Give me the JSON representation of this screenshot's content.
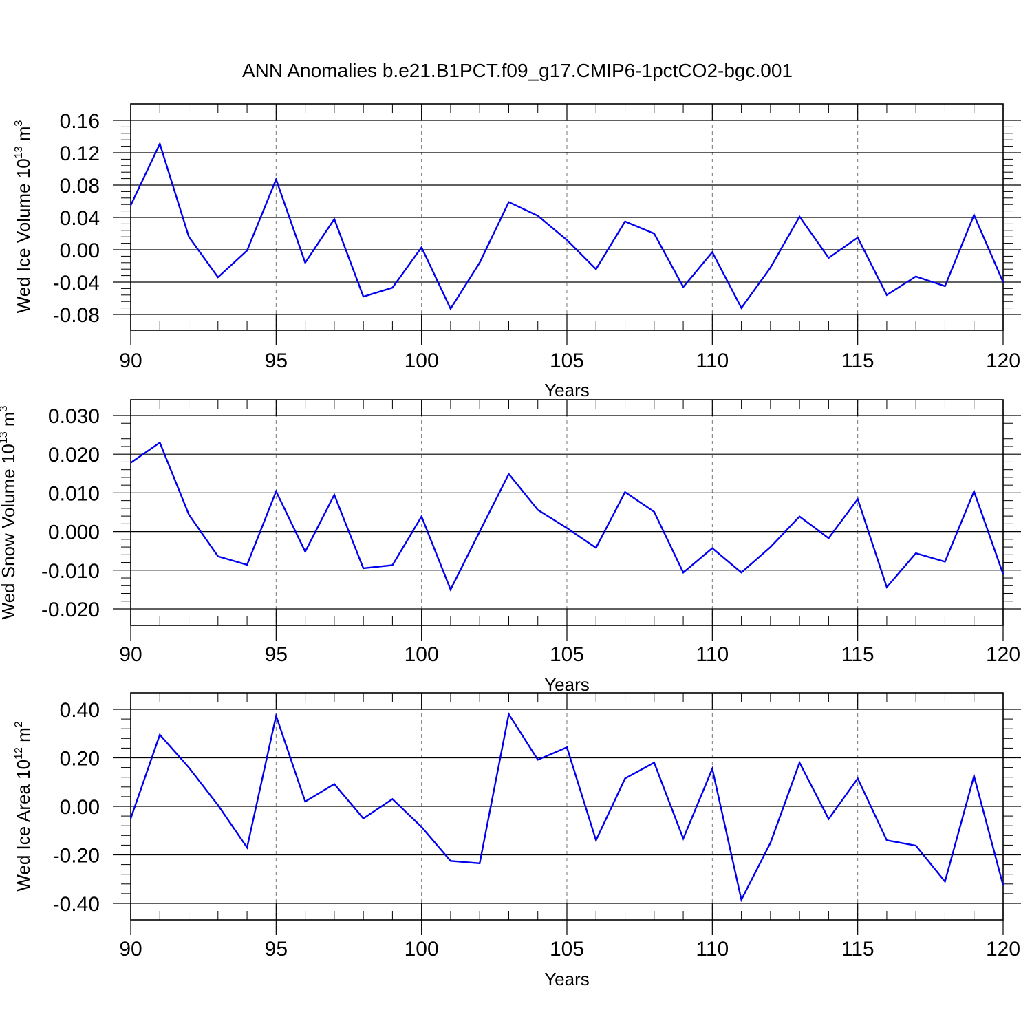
{
  "figure_title": "ANN Anomalies b.e21.B1PCT.f09_g17.CMIP6-1pctCO2-bgc.001",
  "colors": {
    "line": "#0000ee",
    "axis": "#000000",
    "grid": "#777777"
  },
  "chart_data": [
    {
      "type": "line",
      "ylabel": {
        "main": "Wed Ice Volume 10",
        "exp": "13",
        "unit": " m",
        "unit_exp": "3"
      },
      "xlabel": "Years",
      "xlim": [
        90,
        120
      ],
      "ylim": [
        -0.08,
        0.16
      ],
      "x_ticks": [
        "90",
        "95",
        "100",
        "105",
        "110",
        "115",
        "120"
      ],
      "y_ticks": [
        "0.16",
        "0.12",
        "0.08",
        "0.04",
        "0.00",
        "-0.04",
        "-0.08"
      ],
      "y_tick_values": [
        0.16,
        0.12,
        0.08,
        0.04,
        0.0,
        -0.04,
        -0.08
      ],
      "grid": "vertical dashed at major x ticks",
      "x": [
        90,
        91,
        92,
        93,
        94,
        95,
        96,
        97,
        98,
        99,
        100,
        101,
        102,
        103,
        104,
        105,
        106,
        107,
        108,
        109,
        110,
        111,
        112,
        113,
        114,
        115,
        116,
        117,
        118,
        119,
        120
      ],
      "values": [
        0.055,
        0.131,
        0.016,
        -0.034,
        -0.001,
        0.087,
        -0.016,
        0.038,
        -0.058,
        -0.047,
        0.003,
        -0.073,
        -0.016,
        0.059,
        0.042,
        0.012,
        -0.024,
        0.035,
        0.02,
        -0.046,
        -0.003,
        -0.072,
        -0.022,
        0.041,
        -0.01,
        0.015,
        -0.056,
        -0.033,
        -0.045,
        0.043,
        -0.04
      ]
    },
    {
      "type": "line",
      "ylabel": {
        "main": "Wed Snow Volume 10",
        "exp": "13",
        "unit": " m",
        "unit_exp": "3"
      },
      "xlabel": "Years",
      "xlim": [
        90,
        120
      ],
      "ylim": [
        -0.02,
        0.03
      ],
      "x_ticks": [
        "90",
        "95",
        "100",
        "105",
        "110",
        "115",
        "120"
      ],
      "y_ticks": [
        "0.030",
        "0.020",
        "0.010",
        "0.000",
        "-0.010",
        "-0.020"
      ],
      "y_tick_values": [
        0.03,
        0.02,
        0.01,
        0.0,
        -0.01,
        -0.02
      ],
      "grid": "vertical dashed at major x ticks",
      "x": [
        90,
        91,
        92,
        93,
        94,
        95,
        96,
        97,
        98,
        99,
        100,
        101,
        102,
        103,
        104,
        105,
        106,
        107,
        108,
        109,
        110,
        111,
        112,
        113,
        114,
        115,
        116,
        117,
        118,
        119,
        120
      ],
      "values": [
        0.0178,
        0.023,
        0.0044,
        -0.0064,
        -0.0086,
        0.0104,
        -0.0052,
        0.0095,
        -0.0095,
        -0.0087,
        0.0039,
        -0.015,
        0.0,
        0.0149,
        0.0056,
        0.0009,
        -0.0042,
        0.0102,
        0.0051,
        -0.0106,
        -0.0043,
        -0.0106,
        -0.004,
        0.0039,
        -0.0017,
        0.0084,
        -0.0144,
        -0.0056,
        -0.0078,
        0.0104,
        -0.011
      ]
    },
    {
      "type": "line",
      "ylabel": {
        "main": "Wed Ice Area 10",
        "exp": "12",
        "unit": " m",
        "unit_exp": "2"
      },
      "xlabel": "Years",
      "xlim": [
        90,
        120
      ],
      "ylim": [
        -0.4,
        0.4
      ],
      "x_ticks": [
        "90",
        "95",
        "100",
        "105",
        "110",
        "115",
        "120"
      ],
      "y_ticks": [
        "0.40",
        "0.20",
        "0.00",
        "-0.20",
        "-0.40"
      ],
      "y_tick_values": [
        0.4,
        0.2,
        0.0,
        -0.2,
        -0.4
      ],
      "grid": "vertical dashed at major x ticks",
      "x": [
        90,
        91,
        92,
        93,
        94,
        95,
        96,
        97,
        98,
        99,
        100,
        101,
        102,
        103,
        104,
        105,
        106,
        107,
        108,
        109,
        110,
        111,
        112,
        113,
        114,
        115,
        116,
        117,
        118,
        119,
        120
      ],
      "values": [
        -0.05,
        0.295,
        0.16,
        0.005,
        -0.17,
        0.373,
        0.02,
        0.092,
        -0.05,
        0.03,
        -0.085,
        -0.225,
        -0.235,
        0.38,
        0.192,
        0.243,
        -0.14,
        0.115,
        0.18,
        -0.133,
        0.155,
        -0.385,
        -0.15,
        0.18,
        -0.052,
        0.115,
        -0.14,
        -0.162,
        -0.31,
        0.125,
        -0.325
      ]
    }
  ]
}
